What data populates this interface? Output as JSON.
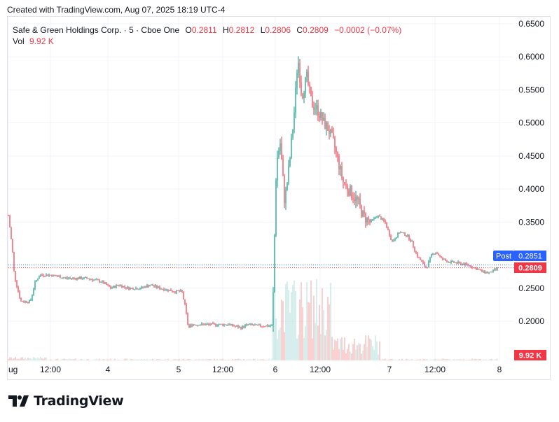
{
  "header": {
    "created_text": "Created with TradingView.com, Aug 07, 2025 18:19 UTC-4"
  },
  "legend": {
    "symbol": "Safe & Green Holdings Corp. · 5 · Cboe One",
    "o_label": "O",
    "o_value": "0.2811",
    "h_label": "H",
    "h_value": "0.2812",
    "l_label": "L",
    "l_value": "0.2806",
    "c_label": "C",
    "c_value": "0.2809",
    "change": "−0.0002 (−0.07%)",
    "vol_label": "Vol",
    "vol_value": "9.92 K"
  },
  "price_axis": {
    "ticks": [
      "0.6500",
      "0.6000",
      "0.5500",
      "0.5000",
      "0.4500",
      "0.4000",
      "0.3500",
      "0.2500",
      "0.2000"
    ]
  },
  "badges": {
    "post_label": "Post",
    "post_value": "0.2851",
    "last_value": "0.2809",
    "volume_value": "9.92 K"
  },
  "time_axis": {
    "labels": [
      "ug",
      "12:00",
      "4",
      "5",
      "12:00",
      "6",
      "12:00",
      "7",
      "12:00",
      "8"
    ]
  },
  "colors": {
    "up": "#089981",
    "down": "#f23645",
    "post_badge": "#2962ff",
    "grid": "#f0f3fa"
  },
  "footer": {
    "logo_text": "TradingView"
  },
  "chart_data": {
    "type": "candlestick",
    "title": "Safe & Green Holdings Corp. · 5 · Cboe One",
    "interval": "5",
    "last": {
      "open": 0.2811,
      "high": 0.2812,
      "low": 0.2806,
      "close": 0.2809,
      "change": -0.0002,
      "change_pct": -0.07
    },
    "post_market_price": 0.2851,
    "last_volume": "9.92 K",
    "ylim": [
      0.16,
      0.66
    ],
    "y_ticks": [
      0.65,
      0.6,
      0.55,
      0.5,
      0.45,
      0.4,
      0.35,
      0.25,
      0.2
    ],
    "x_ticks": [
      "ug",
      "12:00",
      "4",
      "5",
      "12:00",
      "6",
      "12:00",
      "7",
      "12:00",
      "8"
    ],
    "price_path": [
      [
        0.0,
        0.36
      ],
      [
        0.008,
        0.31
      ],
      [
        0.012,
        0.27
      ],
      [
        0.025,
        0.23
      ],
      [
        0.045,
        0.23
      ],
      [
        0.055,
        0.26
      ],
      [
        0.065,
        0.27
      ],
      [
        0.085,
        0.27
      ],
      [
        0.12,
        0.265
      ],
      [
        0.16,
        0.265
      ],
      [
        0.19,
        0.26
      ],
      [
        0.21,
        0.25
      ],
      [
        0.225,
        0.255
      ],
      [
        0.245,
        0.25
      ],
      [
        0.27,
        0.25
      ],
      [
        0.29,
        0.255
      ],
      [
        0.31,
        0.25
      ],
      [
        0.34,
        0.245
      ],
      [
        0.355,
        0.245
      ],
      [
        0.362,
        0.22
      ],
      [
        0.368,
        0.19
      ],
      [
        0.375,
        0.195
      ],
      [
        0.41,
        0.195
      ],
      [
        0.45,
        0.195
      ],
      [
        0.475,
        0.19
      ],
      [
        0.49,
        0.195
      ],
      [
        0.51,
        0.193
      ],
      [
        0.54,
        0.193
      ],
      [
        0.548,
        0.44
      ],
      [
        0.556,
        0.47
      ],
      [
        0.565,
        0.38
      ],
      [
        0.575,
        0.44
      ],
      [
        0.585,
        0.52
      ],
      [
        0.592,
        0.6
      ],
      [
        0.6,
        0.54
      ],
      [
        0.61,
        0.57
      ],
      [
        0.62,
        0.53
      ],
      [
        0.632,
        0.52
      ],
      [
        0.645,
        0.5
      ],
      [
        0.655,
        0.49
      ],
      [
        0.665,
        0.47
      ],
      [
        0.675,
        0.44
      ],
      [
        0.685,
        0.41
      ],
      [
        0.695,
        0.4
      ],
      [
        0.705,
        0.39
      ],
      [
        0.715,
        0.38
      ],
      [
        0.725,
        0.36
      ],
      [
        0.74,
        0.35
      ],
      [
        0.755,
        0.36
      ],
      [
        0.77,
        0.35
      ],
      [
        0.785,
        0.32
      ],
      [
        0.8,
        0.335
      ],
      [
        0.815,
        0.33
      ],
      [
        0.825,
        0.32
      ],
      [
        0.835,
        0.3
      ],
      [
        0.845,
        0.29
      ],
      [
        0.855,
        0.28
      ],
      [
        0.865,
        0.3
      ],
      [
        0.875,
        0.305
      ],
      [
        0.885,
        0.295
      ],
      [
        0.9,
        0.29
      ],
      [
        0.92,
        0.288
      ],
      [
        0.94,
        0.285
      ],
      [
        0.955,
        0.28
      ],
      [
        0.97,
        0.275
      ],
      [
        0.985,
        0.273
      ],
      [
        1.0,
        0.28
      ]
    ]
  }
}
